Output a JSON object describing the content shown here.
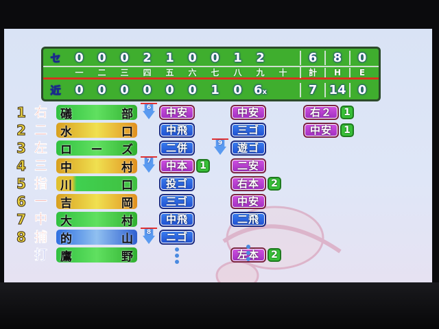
{
  "scoreboard": {
    "teams": [
      {
        "label": "セ",
        "innings": [
          "0",
          "0",
          "0",
          "2",
          "1",
          "0",
          "0",
          "1",
          "2",
          ""
        ],
        "R": "6",
        "H": "8",
        "E": "0"
      },
      {
        "label": "近",
        "innings": [
          "0",
          "0",
          "0",
          "0",
          "0",
          "0",
          "1",
          "0",
          "6x",
          ""
        ],
        "R": "7",
        "H": "14",
        "E": "0"
      }
    ],
    "inning_headers": [
      "一",
      "二",
      "三",
      "四",
      "五",
      "六",
      "七",
      "八",
      "九",
      "十"
    ],
    "total_headers": [
      "計",
      "H",
      "E"
    ]
  },
  "lineup": [
    {
      "order": "1",
      "pos": "右",
      "name": [
        "礒",
        "部"
      ],
      "bar_color": "green",
      "at_bats": [
        [
          "中安",
          "hit",
          ""
        ],
        [
          "中安",
          "hit",
          ""
        ],
        [
          "右２",
          "hit",
          "1"
        ]
      ]
    },
    {
      "order": "2",
      "pos": "二",
      "name": [
        "水",
        "口"
      ],
      "bar_color": "orange",
      "at_bats": [
        [
          "中飛",
          "out",
          ""
        ],
        [
          "三ゴ",
          "out",
          ""
        ],
        [
          "中安",
          "hit",
          "1"
        ]
      ]
    },
    {
      "order": "3",
      "pos": "左",
      "name": [
        "ロ",
        "ー",
        "ズ"
      ],
      "bar_color": "green",
      "at_bats": [
        [
          "二併",
          "out",
          ""
        ],
        [
          "遊ゴ",
          "out",
          ""
        ]
      ]
    },
    {
      "order": "4",
      "pos": "三",
      "name": [
        "中",
        "村"
      ],
      "bar_color": "orange",
      "at_bats": [
        [
          "中本",
          "hit",
          "1"
        ],
        [
          "二安",
          "hit",
          ""
        ]
      ]
    },
    {
      "order": "5",
      "pos": "指",
      "name": [
        "川",
        "口"
      ],
      "bar_color": "yellowgreen",
      "at_bats": [
        [
          "投ゴ",
          "out",
          ""
        ],
        [
          "右本",
          "hit",
          "2"
        ]
      ]
    },
    {
      "order": "6",
      "pos": "一",
      "name": [
        "吉",
        "岡"
      ],
      "bar_color": "orange",
      "at_bats": [
        [
          "三ゴ",
          "out",
          ""
        ],
        [
          "中安",
          "hit",
          ""
        ]
      ]
    },
    {
      "order": "7",
      "pos": "中",
      "name": [
        "大",
        "村"
      ],
      "bar_color": "green",
      "at_bats": [
        [
          "中飛",
          "out",
          ""
        ],
        [
          "二飛",
          "out",
          ""
        ]
      ]
    },
    {
      "order": "8",
      "pos": "捕",
      "name": [
        "的",
        "山"
      ],
      "bar_color": "blue",
      "at_bats": [
        [
          "ニゴ",
          "out",
          ""
        ]
      ]
    },
    {
      "order": "",
      "pos": "打",
      "name": [
        "鷹",
        "野"
      ],
      "bar_color": "green",
      "at_bats": [
        null,
        [
          "左本",
          "hit",
          "2"
        ]
      ]
    }
  ],
  "inning_markers": [
    {
      "label": "6",
      "row": 0,
      "before_col": 0
    },
    {
      "label": "7",
      "row": 3,
      "before_col": 0
    },
    {
      "label": "8",
      "row": 7,
      "before_col": 0
    },
    {
      "label": "9",
      "row": 2,
      "before_col": 1
    }
  ],
  "continuation_dots": [
    {
      "row": 8,
      "col": 0
    },
    {
      "row": 7,
      "col": 1
    }
  ],
  "colors": {
    "hit": "#c040d8",
    "out": "#2f62e0",
    "rbi": "#38c038",
    "scoreboard": "#3fae2e",
    "position": "#e23a2a"
  }
}
